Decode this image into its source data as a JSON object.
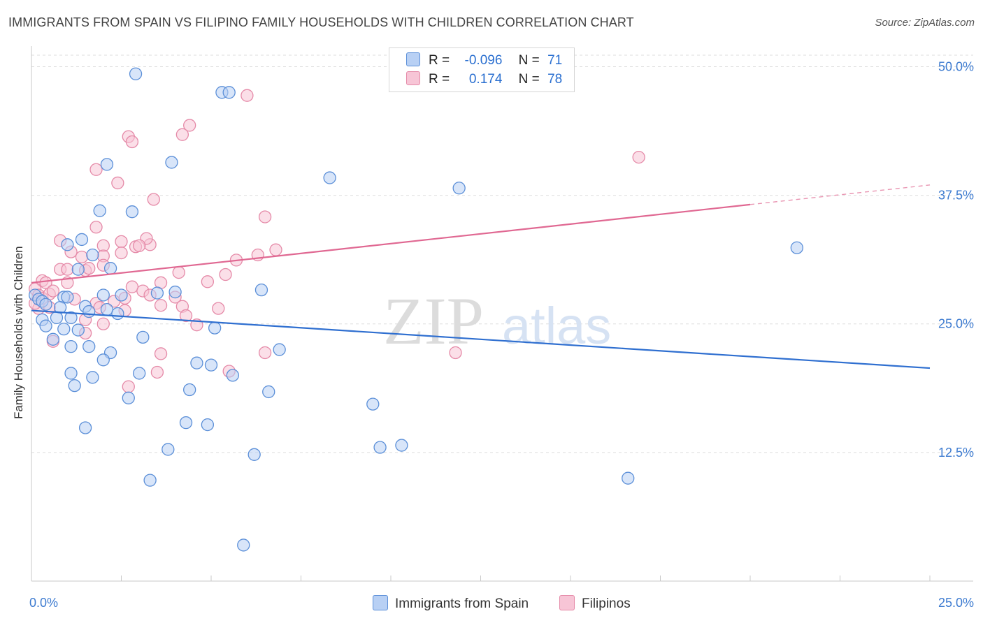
{
  "title": "IMMIGRANTS FROM SPAIN VS FILIPINO FAMILY HOUSEHOLDS WITH CHILDREN CORRELATION CHART",
  "source": "Source: ZipAtlas.com",
  "watermark": {
    "zip": "ZIP",
    "atlas": "atlas"
  },
  "colors": {
    "blue_fill": "#b8d0f4",
    "blue_stroke": "#5b8fd8",
    "blue_line": "#2f6fd0",
    "pink_fill": "#f7c5d6",
    "pink_stroke": "#e58aa8",
    "pink_line": "#e06892",
    "axis_text": "#3d7bd0",
    "grid": "#dddddd"
  },
  "legend": {
    "r_label": "R =",
    "n_label": "N =",
    "blue": {
      "r": "-0.096",
      "n": "71"
    },
    "pink": {
      "r": "0.174",
      "n": "78"
    }
  },
  "chart_data": {
    "type": "scatter",
    "title": "IMMIGRANTS FROM SPAIN VS FILIPINO FAMILY HOUSEHOLDS WITH CHILDREN CORRELATION CHART",
    "xlabel": "",
    "ylabel": "Family Households with Children",
    "xlim": [
      0,
      25
    ],
    "ylim": [
      0,
      52
    ],
    "x_tick_labels": [
      "0.0%",
      "25.0%"
    ],
    "y_ticks": [
      12.5,
      25.0,
      37.5,
      50.0
    ],
    "y_tick_labels": [
      "12.5%",
      "25.0%",
      "37.5%",
      "50.0%"
    ],
    "grid": true,
    "legend_position": "top-center",
    "series": [
      {
        "name": "Immigrants from Spain",
        "color": "#5b8fd8",
        "trend": {
          "x": [
            0,
            25
          ],
          "y": [
            26.3,
            20.7
          ]
        },
        "points": [
          [
            2.9,
            49.3
          ],
          [
            5.3,
            47.5
          ],
          [
            5.5,
            47.5
          ],
          [
            2.1,
            40.5
          ],
          [
            3.9,
            40.7
          ],
          [
            8.3,
            39.2
          ],
          [
            11.9,
            38.2
          ],
          [
            1.9,
            36.0
          ],
          [
            2.8,
            35.9
          ],
          [
            1.4,
            33.2
          ],
          [
            1.0,
            32.7
          ],
          [
            1.7,
            31.7
          ],
          [
            1.3,
            30.3
          ],
          [
            2.2,
            30.4
          ],
          [
            21.3,
            32.4
          ],
          [
            0.1,
            27.8
          ],
          [
            0.2,
            27.4
          ],
          [
            0.3,
            27.2
          ],
          [
            0.4,
            26.9
          ],
          [
            0.9,
            27.6
          ],
          [
            1.0,
            27.6
          ],
          [
            2.0,
            27.8
          ],
          [
            2.5,
            27.8
          ],
          [
            3.5,
            28.0
          ],
          [
            4.0,
            28.1
          ],
          [
            6.4,
            28.3
          ],
          [
            0.8,
            26.6
          ],
          [
            1.5,
            26.7
          ],
          [
            1.6,
            26.2
          ],
          [
            2.1,
            26.4
          ],
          [
            2.4,
            26.0
          ],
          [
            0.3,
            25.4
          ],
          [
            0.4,
            24.8
          ],
          [
            0.7,
            25.6
          ],
          [
            1.1,
            25.6
          ],
          [
            0.9,
            24.5
          ],
          [
            1.3,
            24.4
          ],
          [
            5.1,
            24.6
          ],
          [
            0.6,
            23.5
          ],
          [
            3.1,
            23.7
          ],
          [
            1.1,
            22.8
          ],
          [
            1.6,
            22.8
          ],
          [
            2.2,
            22.2
          ],
          [
            6.9,
            22.5
          ],
          [
            2.0,
            21.5
          ],
          [
            4.6,
            21.2
          ],
          [
            5.0,
            21.0
          ],
          [
            1.1,
            20.2
          ],
          [
            1.7,
            19.8
          ],
          [
            3.0,
            20.2
          ],
          [
            5.6,
            20.0
          ],
          [
            1.2,
            19.0
          ],
          [
            4.4,
            18.6
          ],
          [
            6.6,
            18.4
          ],
          [
            2.7,
            17.8
          ],
          [
            9.5,
            17.2
          ],
          [
            4.3,
            15.4
          ],
          [
            4.9,
            15.2
          ],
          [
            1.5,
            14.9
          ],
          [
            3.8,
            12.8
          ],
          [
            6.2,
            12.3
          ],
          [
            9.7,
            13.0
          ],
          [
            10.3,
            13.2
          ],
          [
            3.3,
            9.8
          ],
          [
            16.6,
            10.0
          ],
          [
            5.9,
            3.5
          ]
        ]
      },
      {
        "name": "Filipinos",
        "color": "#e58aa8",
        "trend": {
          "x": [
            0,
            25
          ],
          "y": [
            29.0,
            38.5
          ]
        },
        "trend_solid_until_x": 20.0,
        "points": [
          [
            6.0,
            47.2
          ],
          [
            4.4,
            44.3
          ],
          [
            2.7,
            43.2
          ],
          [
            2.8,
            42.7
          ],
          [
            4.2,
            43.4
          ],
          [
            16.9,
            41.2
          ],
          [
            1.8,
            40.0
          ],
          [
            2.4,
            38.7
          ],
          [
            3.4,
            37.1
          ],
          [
            6.5,
            35.4
          ],
          [
            1.8,
            34.4
          ],
          [
            0.8,
            33.1
          ],
          [
            2.0,
            32.6
          ],
          [
            2.5,
            33.0
          ],
          [
            2.9,
            32.5
          ],
          [
            3.3,
            32.7
          ],
          [
            3.2,
            33.3
          ],
          [
            1.1,
            32.0
          ],
          [
            1.4,
            31.5
          ],
          [
            2.0,
            31.6
          ],
          [
            2.5,
            31.9
          ],
          [
            3.0,
            32.6
          ],
          [
            6.3,
            31.7
          ],
          [
            5.7,
            31.2
          ],
          [
            6.8,
            32.2
          ],
          [
            0.8,
            30.3
          ],
          [
            1.0,
            30.3
          ],
          [
            1.5,
            30.2
          ],
          [
            2.0,
            30.7
          ],
          [
            1.6,
            30.4
          ],
          [
            4.1,
            30.0
          ],
          [
            5.4,
            29.8
          ],
          [
            0.3,
            29.2
          ],
          [
            0.4,
            29.0
          ],
          [
            1.0,
            29.0
          ],
          [
            2.8,
            28.6
          ],
          [
            3.1,
            28.2
          ],
          [
            3.6,
            29.0
          ],
          [
            4.9,
            29.1
          ],
          [
            0.1,
            28.4
          ],
          [
            0.2,
            27.8
          ],
          [
            0.3,
            27.5
          ],
          [
            0.5,
            27.9
          ],
          [
            0.6,
            28.2
          ],
          [
            1.2,
            27.4
          ],
          [
            1.8,
            27.0
          ],
          [
            2.3,
            27.2
          ],
          [
            2.6,
            27.5
          ],
          [
            3.3,
            27.8
          ],
          [
            4.0,
            27.6
          ],
          [
            0.2,
            26.5
          ],
          [
            0.5,
            26.6
          ],
          [
            0.1,
            27.0
          ],
          [
            1.9,
            26.6
          ],
          [
            2.6,
            26.3
          ],
          [
            3.6,
            26.8
          ],
          [
            4.2,
            26.7
          ],
          [
            5.2,
            26.5
          ],
          [
            4.3,
            25.8
          ],
          [
            1.5,
            25.4
          ],
          [
            2.0,
            25.0
          ],
          [
            4.6,
            24.9
          ],
          [
            1.5,
            24.1
          ],
          [
            0.6,
            23.3
          ],
          [
            3.6,
            22.1
          ],
          [
            6.5,
            22.2
          ],
          [
            11.8,
            22.2
          ],
          [
            3.5,
            20.3
          ],
          [
            5.5,
            20.4
          ],
          [
            2.7,
            18.9
          ]
        ]
      }
    ]
  }
}
